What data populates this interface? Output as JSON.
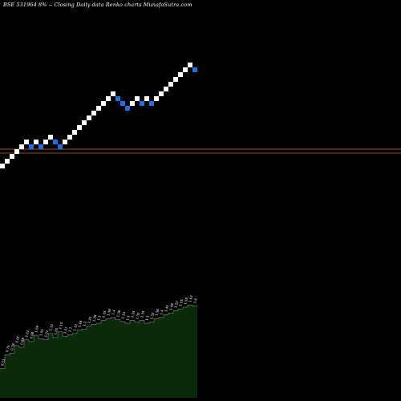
{
  "header": {
    "symbol": "BSE 531964",
    "change": "8%",
    "separator": "--",
    "description": "Closing Daily data",
    "chart_name": "Renko",
    "chart_label": "charts",
    "site": "MunafaSutra.com"
  },
  "colors": {
    "background": "#000000",
    "up_brick": "#ffffff",
    "down_brick": "#1e6fe0",
    "reference_line_1": "#a0522d",
    "reference_line_2": "#8b4a2b",
    "volume_fill": "#0a2a0a",
    "volume_edge": "#ffffff"
  },
  "chart_data": {
    "type": "renko",
    "bricks": [
      "up",
      "up",
      "up",
      "up",
      "up",
      "up",
      "down",
      "up",
      "down",
      "up",
      "up",
      "down",
      "down",
      "up",
      "up",
      "up",
      "up",
      "up",
      "up",
      "up",
      "up",
      "up",
      "up",
      "up",
      "down",
      "down",
      "down",
      "up",
      "up",
      "down",
      "up",
      "down",
      "up",
      "up",
      "up",
      "up",
      "up",
      "up",
      "up",
      "up",
      "down"
    ],
    "reference_levels": [
      186,
      191
    ],
    "volume_labels": [
      "0.51",
      "0.75",
      "0.78",
      "0.91",
      "0.88",
      "1.01",
      "0.98",
      "1.09",
      "1.03",
      "1.01",
      "1.12",
      "1.05",
      "1.15",
      "1.07",
      "1.1",
      "1.12",
      "1.18",
      "1.2",
      "1.25",
      "1.28",
      "1.3",
      "1.35",
      "1.38",
      "1.4",
      "1.36",
      "1.33",
      "1.3",
      "1.35",
      "1.32",
      "1.35",
      "1.3",
      "1.32",
      "1.38",
      "1.4",
      "1.45",
      "1.48",
      "1.52",
      "1.55",
      "1.58",
      "1.62",
      "1.6"
    ],
    "grid": false,
    "legend": "none"
  }
}
